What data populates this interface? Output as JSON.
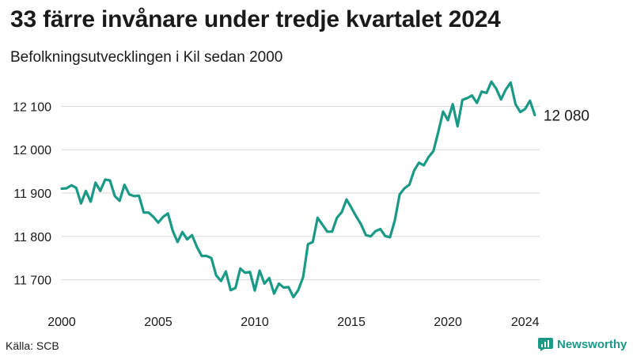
{
  "title": "33 färre invånare under tredje kvartalet 2024",
  "subtitle": "Befolkningsutvecklingen i Kil sedan 2000",
  "source": "Källa: SCB",
  "brand": {
    "name": "Newsworthy",
    "icon": "newsworthy-logo-icon",
    "color": "#1a9a86"
  },
  "chart_data": {
    "type": "line",
    "title": "33 färre invånare under tredje kvartalet 2024",
    "subtitle": "Befolkningsutvecklingen i Kil sedan 2000",
    "xlabel": "",
    "ylabel": "",
    "xlim": [
      2000,
      2024.75
    ],
    "ylim": [
      11650,
      12130
    ],
    "x_ticks": [
      {
        "value": 2000,
        "label": "2000"
      },
      {
        "value": 2005,
        "label": "2005"
      },
      {
        "value": 2010,
        "label": "2010"
      },
      {
        "value": 2015,
        "label": "2015"
      },
      {
        "value": 2020,
        "label": "2020"
      },
      {
        "value": 2024,
        "label": "2024"
      }
    ],
    "y_ticks": [
      {
        "value": 11700,
        "label": "11 700"
      },
      {
        "value": 11800,
        "label": "11 800"
      },
      {
        "value": 11900,
        "label": "11 900"
      },
      {
        "value": 12000,
        "label": "12 000"
      },
      {
        "value": 12100,
        "label": "12 100"
      }
    ],
    "grid": "horizontal",
    "line_color": "#1a9a86",
    "end_label": "12 080",
    "series": [
      {
        "x": [
          2000.0,
          2000.25,
          2000.5,
          2000.75,
          2001.0,
          2001.25,
          2001.5,
          2001.75,
          2002.0,
          2002.25,
          2002.5,
          2002.75,
          2003.0,
          2003.25,
          2003.5,
          2003.75,
          2004.0,
          2004.25,
          2004.5,
          2004.75,
          2005.0,
          2005.25,
          2005.5,
          2005.75,
          2006.0,
          2006.25,
          2006.5,
          2006.75,
          2007.0,
          2007.25,
          2007.5,
          2007.75,
          2008.0,
          2008.25,
          2008.5,
          2008.75,
          2009.0,
          2009.25,
          2009.5,
          2009.75,
          2010.0,
          2010.25,
          2010.5,
          2010.75,
          2011.0,
          2011.25,
          2011.5,
          2011.75,
          2012.0,
          2012.25,
          2012.5,
          2012.75,
          2013.0,
          2013.25,
          2013.5,
          2013.75,
          2014.0,
          2014.25,
          2014.5,
          2014.75,
          2015.0,
          2015.25,
          2015.5,
          2015.75,
          2016.0,
          2016.25,
          2016.5,
          2016.75,
          2017.0,
          2017.25,
          2017.5,
          2017.75,
          2018.0,
          2018.25,
          2018.5,
          2018.75,
          2019.0,
          2019.25,
          2019.5,
          2019.75,
          2020.0,
          2020.25,
          2020.5,
          2020.75,
          2021.0,
          2021.25,
          2021.5,
          2021.75,
          2022.0,
          2022.25,
          2022.5,
          2022.75,
          2023.0,
          2023.25,
          2023.5,
          2023.75,
          2024.0,
          2024.25,
          2024.5
        ],
        "values": [
          11910,
          11911,
          11918,
          11912,
          11876,
          11905,
          11880,
          11924,
          11905,
          11931,
          11929,
          11893,
          11882,
          11919,
          11897,
          11893,
          11894,
          11855,
          11855,
          11845,
          11832,
          11845,
          11853,
          11813,
          11787,
          11810,
          11793,
          11803,
          11776,
          11755,
          11755,
          11750,
          11710,
          11697,
          11719,
          11676,
          11681,
          11726,
          11716,
          11718,
          11675,
          11721,
          11691,
          11704,
          11668,
          11691,
          11682,
          11683,
          11660,
          11676,
          11706,
          11782,
          11787,
          11843,
          11827,
          11811,
          11811,
          11843,
          11856,
          11885,
          11866,
          11846,
          11828,
          11803,
          11800,
          11812,
          11817,
          11801,
          11798,
          11837,
          11897,
          11911,
          11919,
          11952,
          11970,
          11964,
          11983,
          11997,
          12041,
          12088,
          12068,
          12105,
          12054,
          12115,
          12119,
          12125,
          12108,
          12134,
          12131,
          12157,
          12141,
          12116,
          12139,
          12155,
          12105,
          12087,
          12094,
          12113,
          12080
        ]
      }
    ]
  }
}
